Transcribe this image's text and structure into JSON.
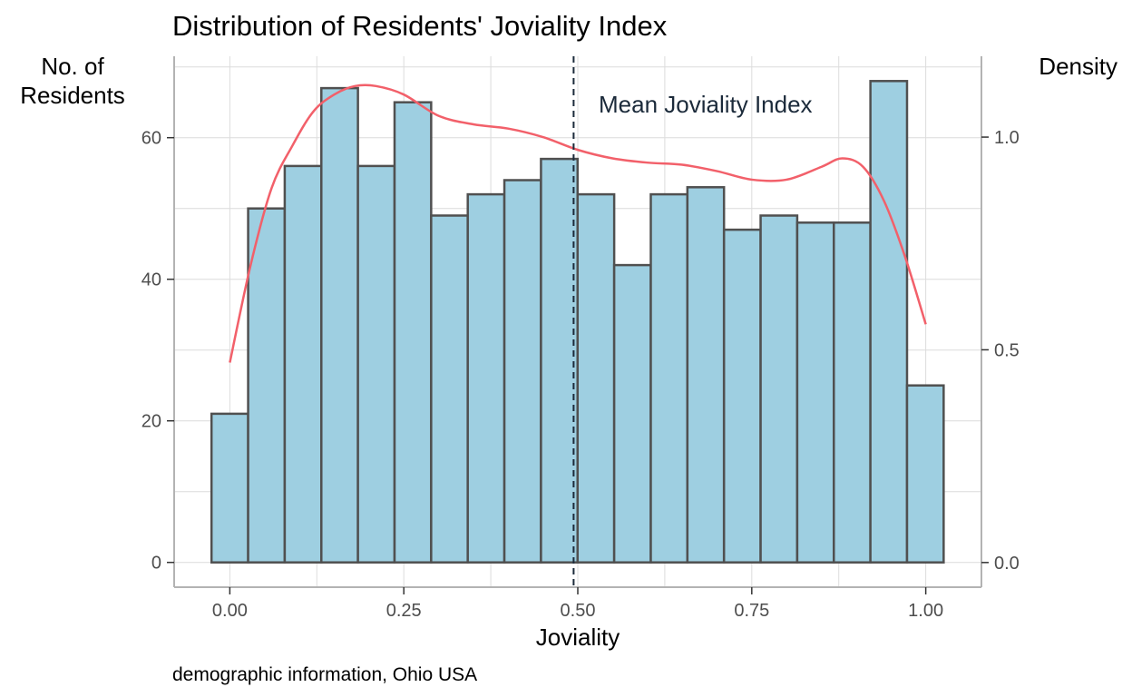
{
  "chart_data": {
    "type": "bar",
    "title": "Distribution of Residents' Joviality Index",
    "xlabel": "Joviality",
    "ylabel_lines": [
      "No. of",
      "Residents"
    ],
    "y2label": "Density",
    "caption": "demographic information, Ohio USA",
    "annotation": "Mean Joviality Index",
    "mean": 0.494,
    "bin_width": 0.0526,
    "bin_start": -0.0263,
    "counts": [
      21,
      50,
      56,
      67,
      56,
      65,
      49,
      52,
      54,
      57,
      52,
      42,
      52,
      53,
      47,
      49,
      48,
      48,
      68,
      25
    ],
    "xlim": [
      -0.08,
      1.08
    ],
    "ylim": [
      -3.5,
      71.5
    ],
    "y2lim": [
      -0.058,
      1.19
    ],
    "x_ticks": [
      {
        "value": 0.0,
        "label": "0.00"
      },
      {
        "value": 0.25,
        "label": "0.25"
      },
      {
        "value": 0.5,
        "label": "0.50"
      },
      {
        "value": 0.75,
        "label": "0.75"
      },
      {
        "value": 1.0,
        "label": "1.00"
      }
    ],
    "y_ticks": [
      {
        "value": 0,
        "label": "0"
      },
      {
        "value": 20,
        "label": "20"
      },
      {
        "value": 40,
        "label": "40"
      },
      {
        "value": 60,
        "label": "60"
      }
    ],
    "y2_ticks": [
      {
        "value": 0.0,
        "label": "0.0"
      },
      {
        "value": 0.5,
        "label": "0.5"
      },
      {
        "value": 1.0,
        "label": "1.0"
      }
    ],
    "density": {
      "x": [
        0.0,
        0.03,
        0.06,
        0.09,
        0.12,
        0.15,
        0.18,
        0.21,
        0.25,
        0.3,
        0.35,
        0.4,
        0.45,
        0.5,
        0.55,
        0.6,
        0.65,
        0.7,
        0.75,
        0.8,
        0.85,
        0.88,
        0.91,
        0.94,
        0.97,
        1.0
      ],
      "y": [
        0.47,
        0.7,
        0.88,
        0.98,
        1.06,
        1.1,
        1.12,
        1.12,
        1.1,
        1.05,
        1.03,
        1.02,
        1.0,
        0.97,
        0.95,
        0.94,
        0.935,
        0.92,
        0.9,
        0.9,
        0.93,
        0.95,
        0.93,
        0.85,
        0.72,
        0.56
      ]
    },
    "colors": {
      "bar_fill": "#9ecfe1",
      "bar_stroke": "#505050",
      "density_line": "#f2606a",
      "mean_line": "#1b2a3a",
      "grid": "#dcdcdc",
      "axis": "#b3b3b3"
    },
    "grid": true,
    "legend": "none"
  }
}
